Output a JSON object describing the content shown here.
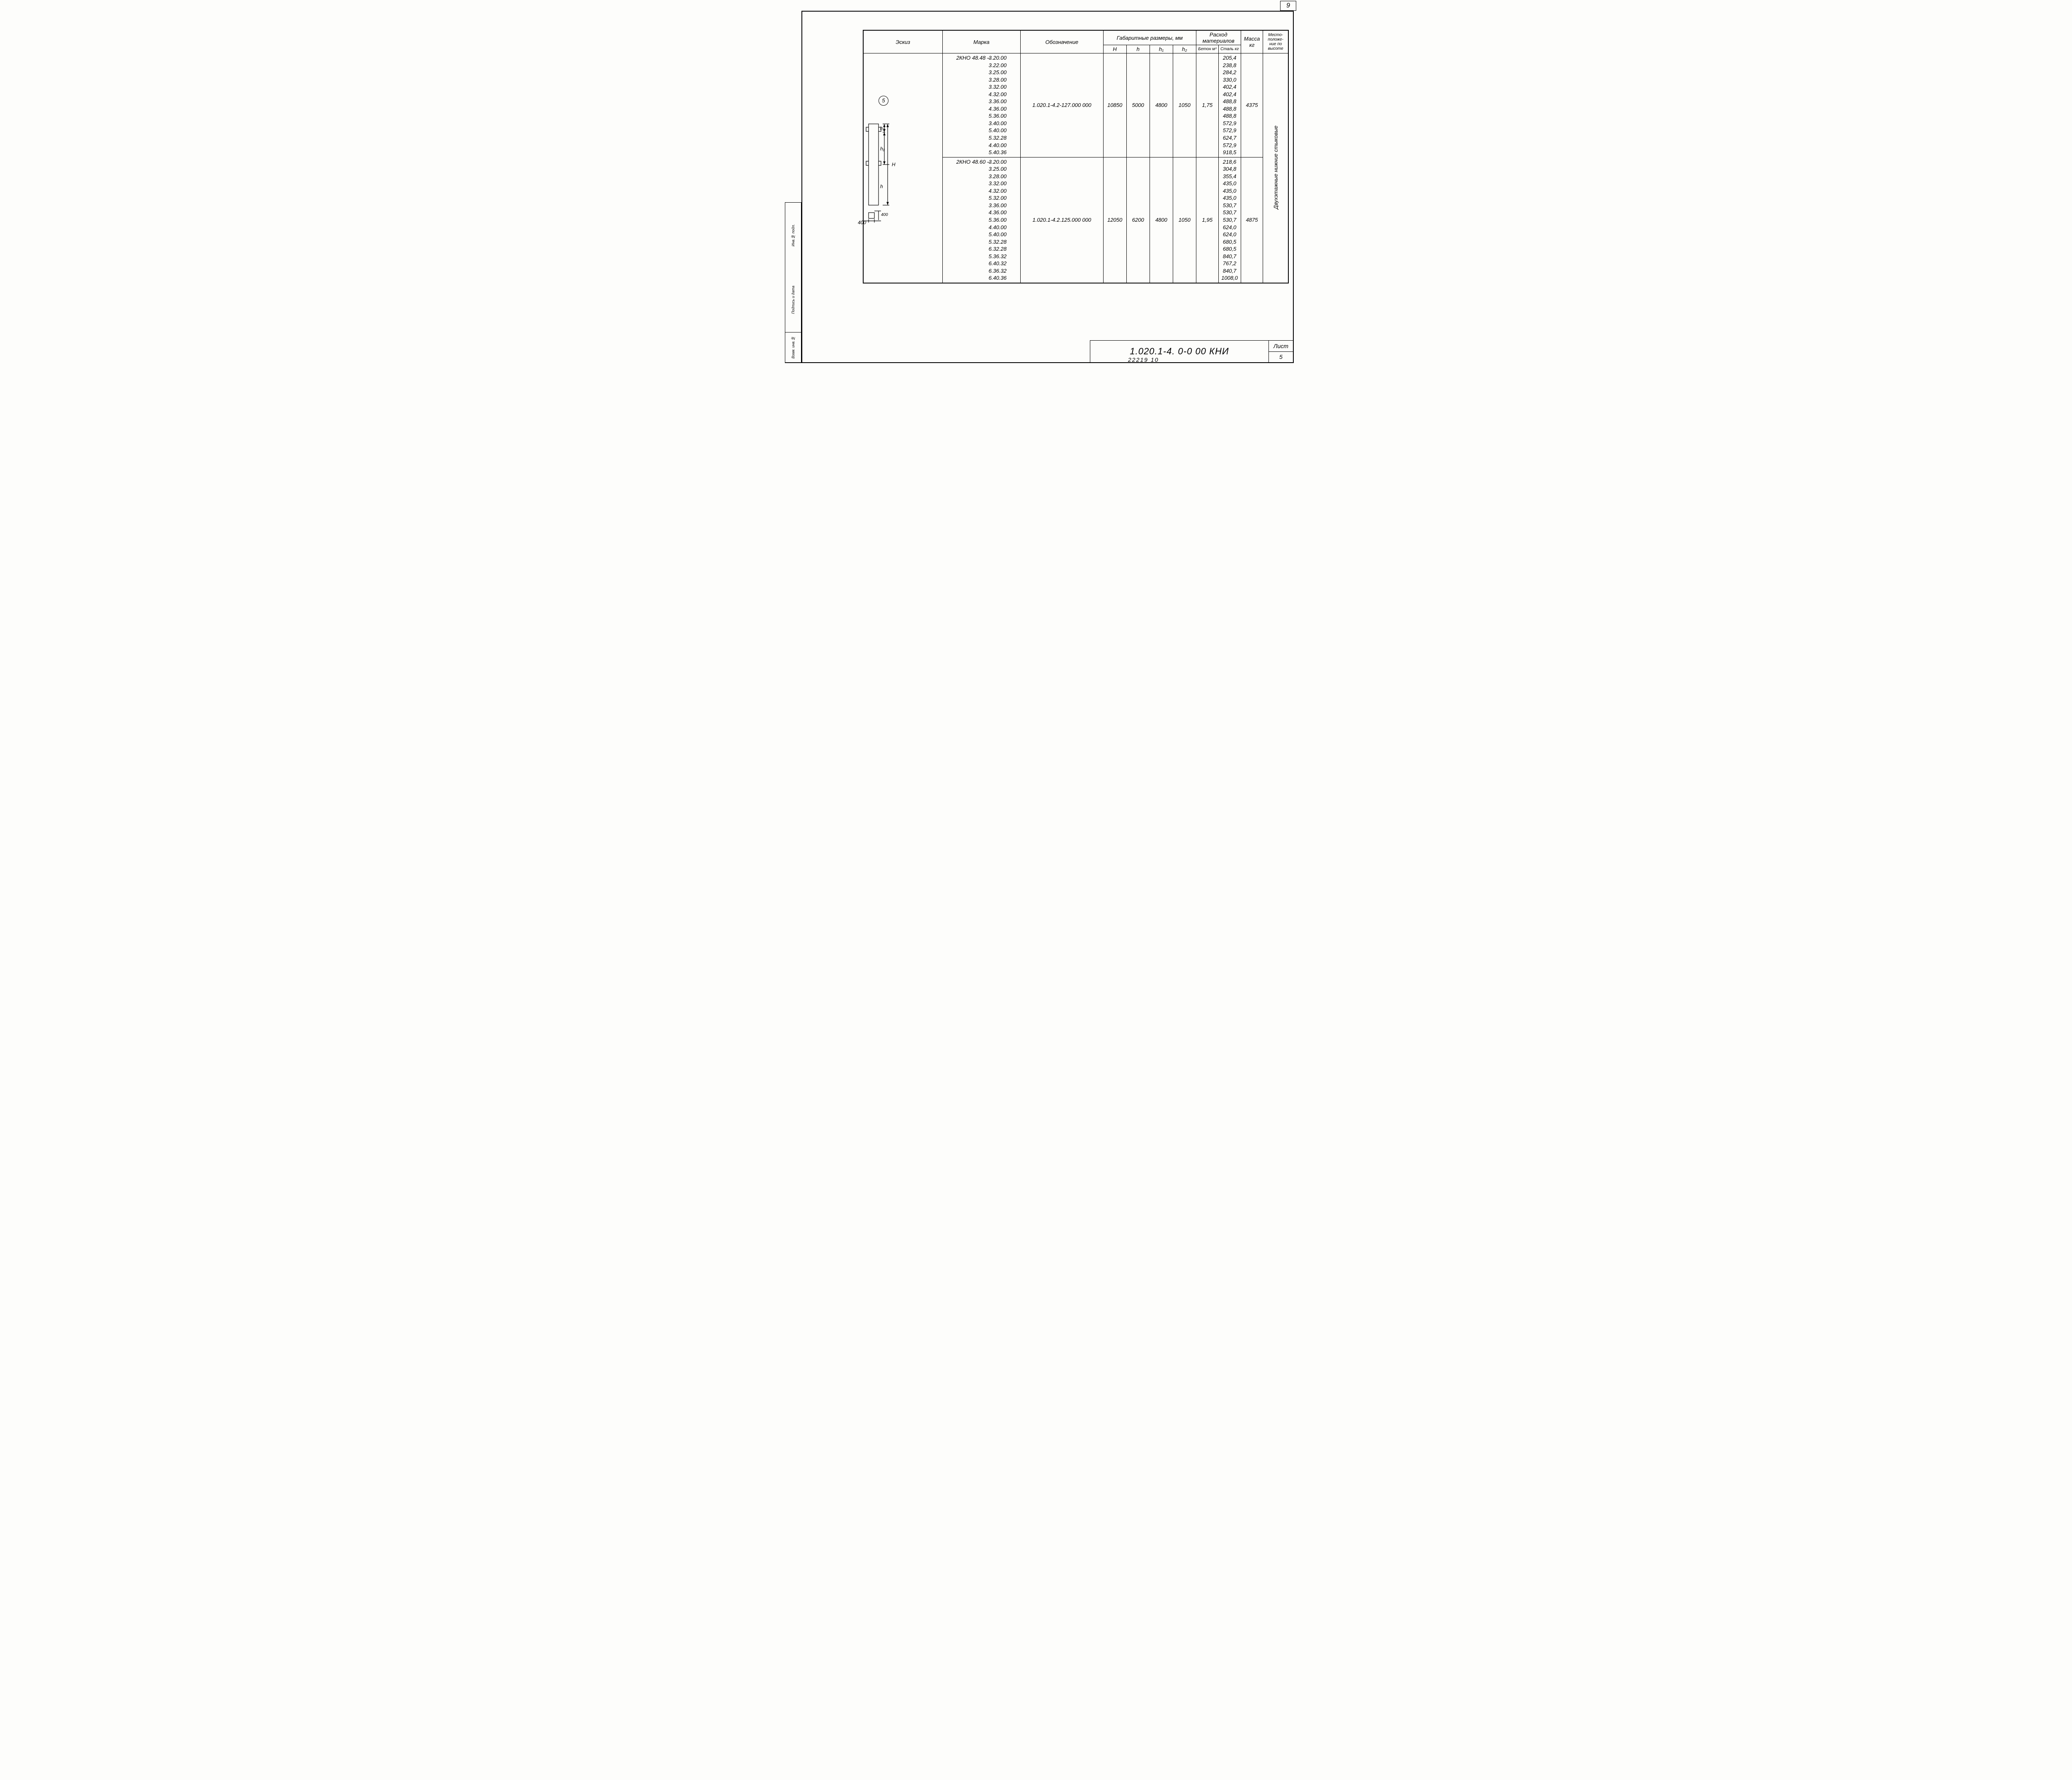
{
  "page_number_top": "9",
  "side_labels": [
    "Инв.№ подл.",
    "Подпись и дата",
    "Взам. инв.№"
  ],
  "headers": {
    "eskiz": "Эскиз",
    "marka": "Марка",
    "oboz": "Обозначение",
    "gabarit": "Габаритные размеры, мм",
    "H": "H",
    "h": "h",
    "h1": "h₁",
    "h2": "h₂",
    "rashod": "Расход материалов",
    "beton": "Бетон м³",
    "stal": "Сталь кг",
    "massa": "Масса кг",
    "mesto": "Место-положе-ние по высоте"
  },
  "sketch": {
    "circle_number": "5",
    "dim_400": "400",
    "dim_400b": "400",
    "lbl_H": "H",
    "lbl_h": "h",
    "lbl_h1": "h₁",
    "lbl_h2": "h₂"
  },
  "groups": [
    {
      "prefix": "2КНО  48.48 –",
      "suffixes": [
        "3.20.00",
        "3.22.00",
        "3.25.00",
        "3.28.00",
        "3.32.00",
        "4.32.00",
        "3.36.00",
        "4.36.00",
        "5.36.00",
        "3.40.00",
        "5.40.00",
        "5.32.28",
        "4.40.00",
        "5.40.36"
      ],
      "oboz": "1.020.1-4.2-127.000 000",
      "H": "10850",
      "h": "5000",
      "h1": "4800",
      "h2": "1050",
      "beton": "1,75",
      "stal": [
        "205,4",
        "238,8",
        "284,2",
        "330,0",
        "402,4",
        "402,4",
        "488,8",
        "488,8",
        "488,8",
        "572,9",
        "572,9",
        "624,7",
        "572,9",
        "918,5"
      ],
      "massa": "4375"
    },
    {
      "prefix": "2КНО  48.60 –",
      "suffixes": [
        "3.20.00",
        "3.25.00",
        "3.28.00",
        "3.32.00",
        "4.32.00",
        "5.32.00",
        "3.36.00",
        "4.36.00",
        "5.36.00",
        "4.40.00",
        "5.40.00",
        "5.32.28",
        "6.32.28",
        "5.36.32",
        "6.40.32",
        "6.36.32",
        "6.40.36"
      ],
      "oboz": "1.020.1-4.2.125.000 000",
      "H": "12050",
      "h": "6200",
      "h1": "4800",
      "h2": "1050",
      "beton": "1,95",
      "stal": [
        "218,6",
        "304,8",
        "355,4",
        "435,0",
        "435,0",
        "435,0",
        "530,7",
        "530,7",
        "530,7",
        "624,0",
        "624,0",
        "680,5",
        "680,5",
        "840,7",
        "767,2",
        "840,7",
        "1008,0"
      ],
      "massa": "4875"
    }
  ],
  "mesto_text": "Двухэтажные нижние стыковые",
  "doc_code": "1.020.1-4. 0-0 00 КНИ",
  "sheet_label": "Лист",
  "sheet_num": "5",
  "footer_code": "22219   10"
}
